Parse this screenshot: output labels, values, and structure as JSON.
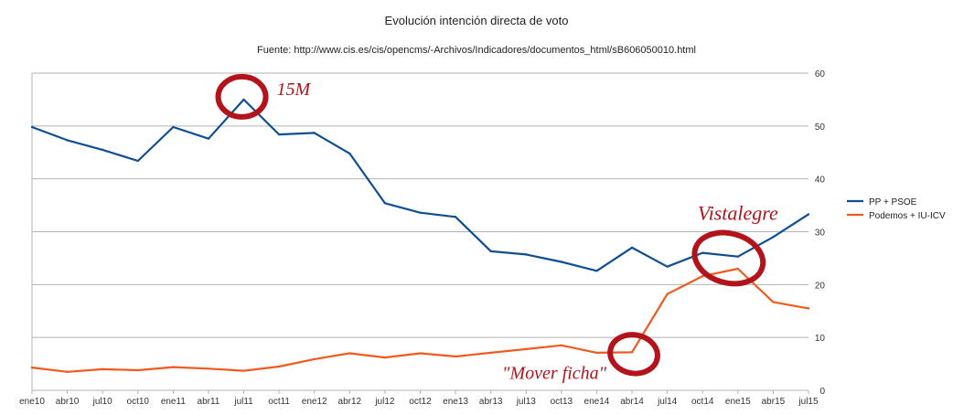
{
  "chart_data": {
    "type": "line",
    "title": "Evolución intención directa de voto",
    "subtitle": "Fuente: http://www.cis.es/cis/opencms/-Archivos/Indicadores/documentos_html/sB606050010.html",
    "categories": [
      "ene10",
      "abr10",
      "jul10",
      "oct10",
      "ene11",
      "abr11",
      "jul11",
      "oct11",
      "ene12",
      "abr12",
      "jul12",
      "oct12",
      "ene13",
      "abr13",
      "jul13",
      "oct13",
      "ene14",
      "abr14",
      "jul14",
      "oct14",
      "ene15",
      "abr15",
      "jul15"
    ],
    "series": [
      {
        "name": "PP + PSOE",
        "color": "#0f4f91",
        "values": [
          49.8,
          47.3,
          45.5,
          43.4,
          49.8,
          47.6,
          55.0,
          48.4,
          48.7,
          44.8,
          35.4,
          33.6,
          32.8,
          26.3,
          25.7,
          24.3,
          22.6,
          27.0,
          23.4,
          26.0,
          25.3,
          29.0,
          33.3
        ]
      },
      {
        "name": "Podemos + IU-ICV",
        "color": "#f05a1e",
        "values": [
          4.3,
          3.5,
          4.0,
          3.8,
          4.4,
          4.1,
          3.7,
          4.5,
          5.9,
          7.0,
          6.2,
          7.0,
          6.4,
          7.1,
          7.8,
          8.5,
          7.1,
          7.2,
          18.2,
          21.6,
          23.0,
          16.7,
          15.5
        ]
      }
    ],
    "ylim": [
      0,
      60
    ],
    "yticks": [
      "0",
      "10",
      "20",
      "30",
      "40",
      "50",
      "60"
    ],
    "y_axis_side": "right",
    "grid": true,
    "legend_position": "right",
    "annotations": [
      {
        "text": "15M",
        "category": "jul11"
      },
      {
        "text": "Vistalegre",
        "category": "ene15"
      },
      {
        "text": "\"Mover ficha\"",
        "category": "abr14"
      }
    ]
  }
}
